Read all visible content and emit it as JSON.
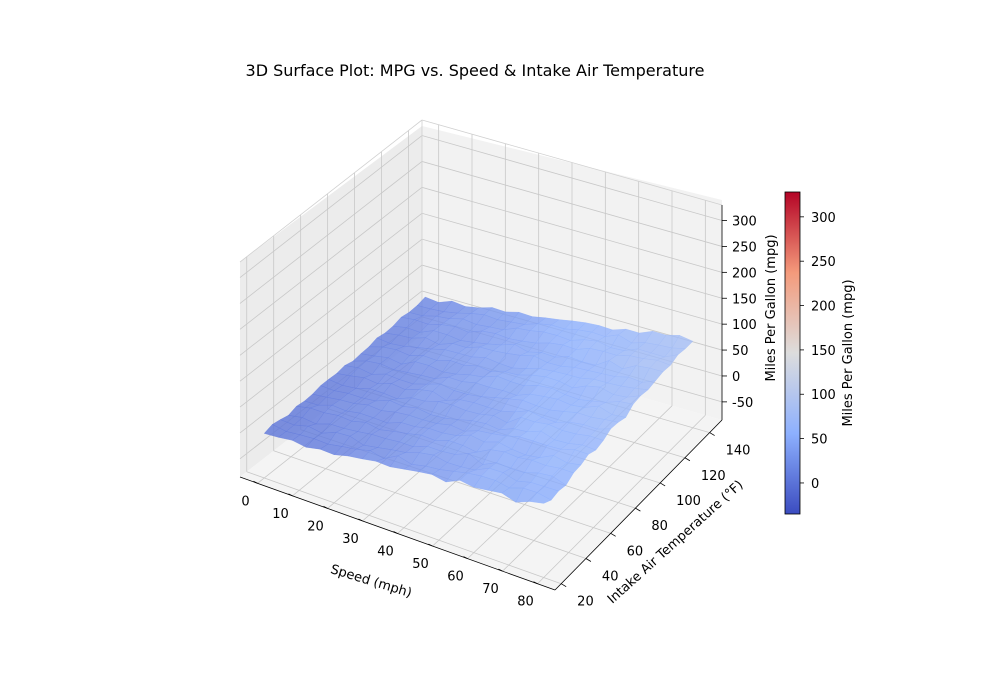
{
  "chart_data": {
    "type": "surface3d",
    "title": "3D Surface Plot: MPG vs. Speed & Intake Air Temperature",
    "xlabel": "Speed (mph)",
    "ylabel": "Intake Air Temperature (°F)",
    "zlabel": "Miles Per Gallon (mpg)",
    "colorbar_label": "Miles Per Gallon (mpg)",
    "colormap": "coolwarm",
    "xlim": [
      -5,
      85
    ],
    "ylim": [
      15,
      150
    ],
    "zlim": [
      -85,
      330
    ],
    "clim": [
      -35,
      328
    ],
    "x_ticks": [
      0,
      10,
      20,
      30,
      40,
      50,
      60,
      70,
      80
    ],
    "y_ticks": [
      20,
      40,
      60,
      80,
      100,
      120,
      140
    ],
    "z_ticks": [
      -50,
      0,
      50,
      100,
      150,
      200,
      250,
      300
    ],
    "colorbar_ticks": [
      0,
      50,
      100,
      150,
      200,
      250,
      300
    ],
    "grid": true,
    "x": [
      0,
      4,
      8,
      12,
      16,
      20,
      24,
      28,
      32,
      36,
      40,
      44,
      48,
      52,
      56,
      60,
      64,
      68,
      72,
      76,
      80
    ],
    "y": [
      20,
      26,
      32,
      38,
      44,
      50,
      56,
      62,
      68,
      74,
      80,
      86,
      92,
      98,
      104,
      110,
      116,
      122,
      128,
      134,
      140
    ],
    "z": [
      [
        1,
        3,
        7,
        3,
        9,
        8,
        15,
        19,
        24,
        23,
        28,
        33,
        37,
        32,
        45,
        41,
        45,
        49,
        41,
        52,
        58
      ],
      [
        6,
        2,
        5,
        7,
        6,
        11,
        15,
        22,
        16,
        31,
        24,
        30,
        33,
        39,
        45,
        49,
        50,
        45,
        54,
        55,
        50
      ],
      [
        3,
        2,
        9,
        5,
        16,
        18,
        10,
        15,
        20,
        24,
        33,
        38,
        33,
        34,
        37,
        50,
        51,
        44,
        51,
        52,
        53
      ],
      [
        -1,
        4,
        1,
        10,
        11,
        14,
        18,
        19,
        22,
        22,
        32,
        32,
        35,
        46,
        34,
        47,
        45,
        46,
        55,
        58,
        50
      ],
      [
        4,
        10,
        10,
        14,
        12,
        19,
        14,
        20,
        25,
        31,
        30,
        39,
        39,
        35,
        49,
        54,
        52,
        56,
        55,
        59,
        59
      ],
      [
        2,
        3,
        12,
        10,
        15,
        15,
        14,
        24,
        25,
        31,
        31,
        35,
        45,
        41,
        50,
        45,
        43,
        47,
        60,
        55,
        60
      ],
      [
        3,
        6,
        10,
        12,
        18,
        16,
        22,
        25,
        25,
        27,
        33,
        30,
        40,
        43,
        48,
        55,
        56,
        56,
        58,
        66,
        66
      ],
      [
        7,
        6,
        10,
        10,
        13,
        23,
        20,
        26,
        22,
        24,
        30,
        37,
        40,
        37,
        48,
        51,
        61,
        53,
        55,
        61,
        60
      ],
      [
        7,
        4,
        7,
        15,
        15,
        13,
        24,
        26,
        34,
        36,
        34,
        36,
        42,
        37,
        56,
        56,
        60,
        57,
        59,
        64,
        64
      ],
      [
        6,
        10,
        15,
        12,
        21,
        18,
        27,
        32,
        23,
        33,
        36,
        36,
        37,
        44,
        55,
        51,
        50,
        59,
        63,
        63,
        72
      ],
      [
        9,
        13,
        9,
        18,
        16,
        16,
        24,
        33,
        29,
        30,
        34,
        41,
        47,
        53,
        51,
        51,
        57,
        63,
        63,
        67,
        70
      ],
      [
        5,
        14,
        17,
        14,
        17,
        20,
        22,
        33,
        33,
        39,
        39,
        41,
        40,
        51,
        55,
        58,
        55,
        59,
        70,
        62,
        65
      ],
      [
        7,
        11,
        16,
        12,
        25,
        26,
        22,
        26,
        33,
        37,
        47,
        45,
        45,
        54,
        57,
        53,
        52,
        57,
        63,
        73,
        76
      ],
      [
        8,
        16,
        19,
        16,
        24,
        23,
        31,
        30,
        37,
        34,
        42,
        44,
        52,
        57,
        57,
        52,
        64,
        70,
        64,
        67,
        78
      ],
      [
        13,
        10,
        13,
        19,
        24,
        31,
        32,
        33,
        40,
        37,
        36,
        43,
        51,
        54,
        56,
        57,
        63,
        64,
        66,
        70,
        75
      ],
      [
        10,
        14,
        16,
        25,
        20,
        30,
        30,
        39,
        40,
        43,
        47,
        54,
        49,
        50,
        56,
        58,
        60,
        62,
        69,
        67,
        78
      ],
      [
        11,
        16,
        15,
        26,
        26,
        23,
        27,
        32,
        38,
        47,
        40,
        47,
        46,
        55,
        53,
        54,
        71,
        63,
        77,
        80,
        81
      ],
      [
        16,
        19,
        18,
        25,
        29,
        26,
        36,
        39,
        37,
        40,
        44,
        52,
        56,
        55,
        65,
        67,
        67,
        74,
        76,
        81,
        79
      ],
      [
        13,
        14,
        21,
        24,
        31,
        28,
        31,
        33,
        44,
        47,
        52,
        53,
        51,
        60,
        65,
        60,
        62,
        73,
        73,
        73,
        85
      ],
      [
        14,
        15,
        17,
        22,
        29,
        34,
        32,
        35,
        38,
        47,
        52,
        52,
        58,
        61,
        60,
        71,
        63,
        71,
        74,
        76,
        82
      ],
      [
        18,
        15,
        25,
        22,
        27,
        35,
        34,
        41,
        40,
        45,
        49,
        54,
        58,
        60,
        59,
        68,
        68,
        79,
        79,
        86,
        82
      ]
    ]
  }
}
